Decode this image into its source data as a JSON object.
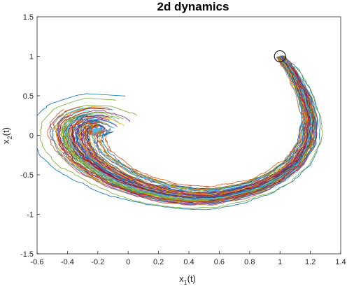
{
  "chart_data": {
    "type": "line",
    "title": "2d dynamics",
    "xlabel": {
      "main": "x",
      "sub": "1",
      "tail": "(t)"
    },
    "ylabel": {
      "main": "x",
      "sub": "2",
      "tail": "(t)"
    },
    "xlim": [
      -0.6,
      1.4
    ],
    "ylim": [
      -1.5,
      1.5
    ],
    "xticks": [
      -0.6,
      -0.4,
      -0.2,
      0,
      0.2,
      0.4,
      0.6,
      0.8,
      1,
      1.2,
      1.4
    ],
    "xtick_labels": [
      "-0.6",
      "-0.4",
      "-0.2",
      "0",
      "0.2",
      "0.4",
      "0.6",
      "0.8",
      "1",
      "1.2",
      "1.4"
    ],
    "yticks": [
      -1.5,
      -1,
      -0.5,
      0,
      0.5,
      1,
      1.5
    ],
    "ytick_labels": [
      "-1.5",
      "-1",
      "-0.5",
      "0",
      "0.5",
      "1",
      "1.5"
    ],
    "grid": false,
    "start_point": {
      "x": 1,
      "y": 1,
      "marker": "circle"
    },
    "mean_path": {
      "x": [
        1.0,
        1.08,
        1.16,
        1.2,
        1.18,
        1.1,
        0.98,
        0.85,
        0.7,
        0.55,
        0.4,
        0.25,
        0.1,
        -0.05,
        -0.18,
        -0.28,
        -0.34,
        -0.36,
        -0.34,
        -0.28,
        -0.2,
        -0.12,
        -0.05
      ],
      "y": [
        1.0,
        0.8,
        0.5,
        0.2,
        -0.1,
        -0.35,
        -0.52,
        -0.65,
        -0.73,
        -0.78,
        -0.78,
        -0.74,
        -0.67,
        -0.56,
        -0.42,
        -0.28,
        -0.12,
        0.02,
        0.13,
        0.2,
        0.22,
        0.18,
        0.1
      ]
    },
    "series_count": 100,
    "series_colors": [
      "#0072BD",
      "#D95319",
      "#EDB120",
      "#7E2F8E",
      "#77AC30",
      "#4DBEEE",
      "#A2142F"
    ]
  }
}
